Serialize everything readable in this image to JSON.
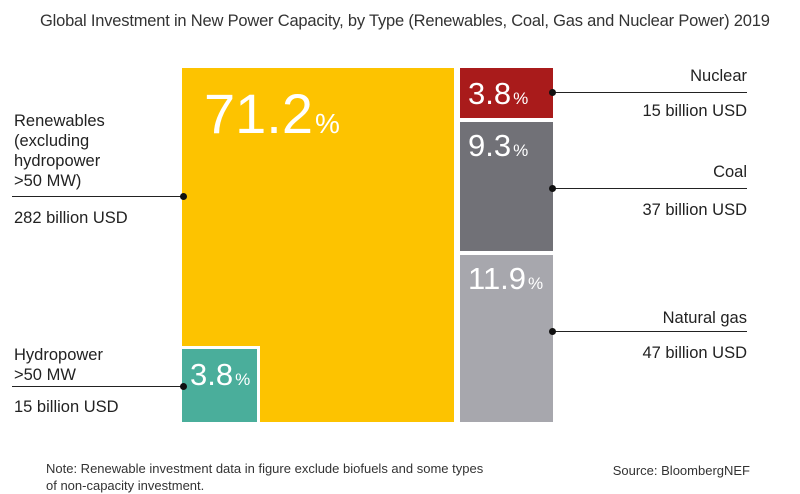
{
  "chart_data": {
    "type": "treemap",
    "title": "Global Investment in New Power Capacity, by Type (Renewables, Coal, Gas and Nuclear Power) 2019",
    "segments": [
      {
        "key": "renewables",
        "label_lines": [
          "Renewables",
          "(excluding",
          "hydropower",
          ">50 MW)"
        ],
        "value_text": "282 billion USD",
        "value": 282,
        "share_number": "71.2",
        "share_pct": 71.2,
        "color": "#FDC300"
      },
      {
        "key": "hydro",
        "label_lines": [
          "Hydropower",
          ">50 MW"
        ],
        "value_text": "15 billion USD",
        "value": 15,
        "share_number": "3.8",
        "share_pct": 3.8,
        "color": "#4AAE9B"
      },
      {
        "key": "nuclear",
        "label_lines": [
          "Nuclear"
        ],
        "value_text": "15 billion USD",
        "value": 15,
        "share_number": "3.8",
        "share_pct": 3.8,
        "color": "#A91B1B"
      },
      {
        "key": "coal",
        "label_lines": [
          "Coal"
        ],
        "value_text": "37 billion USD",
        "value": 37,
        "share_number": "9.3",
        "share_pct": 9.3,
        "color": "#717177"
      },
      {
        "key": "gas",
        "label_lines": [
          "Natural gas"
        ],
        "value_text": "47 billion USD",
        "value": 47,
        "share_number": "11.9",
        "share_pct": 11.9,
        "color": "#A7A7AD"
      }
    ],
    "percent_unit": "%"
  },
  "note_lines": [
    "Note: Renewable investment data in figure exclude biofuels and some types",
    "of non-capacity investment."
  ],
  "source": "Source: BloombergNEF"
}
